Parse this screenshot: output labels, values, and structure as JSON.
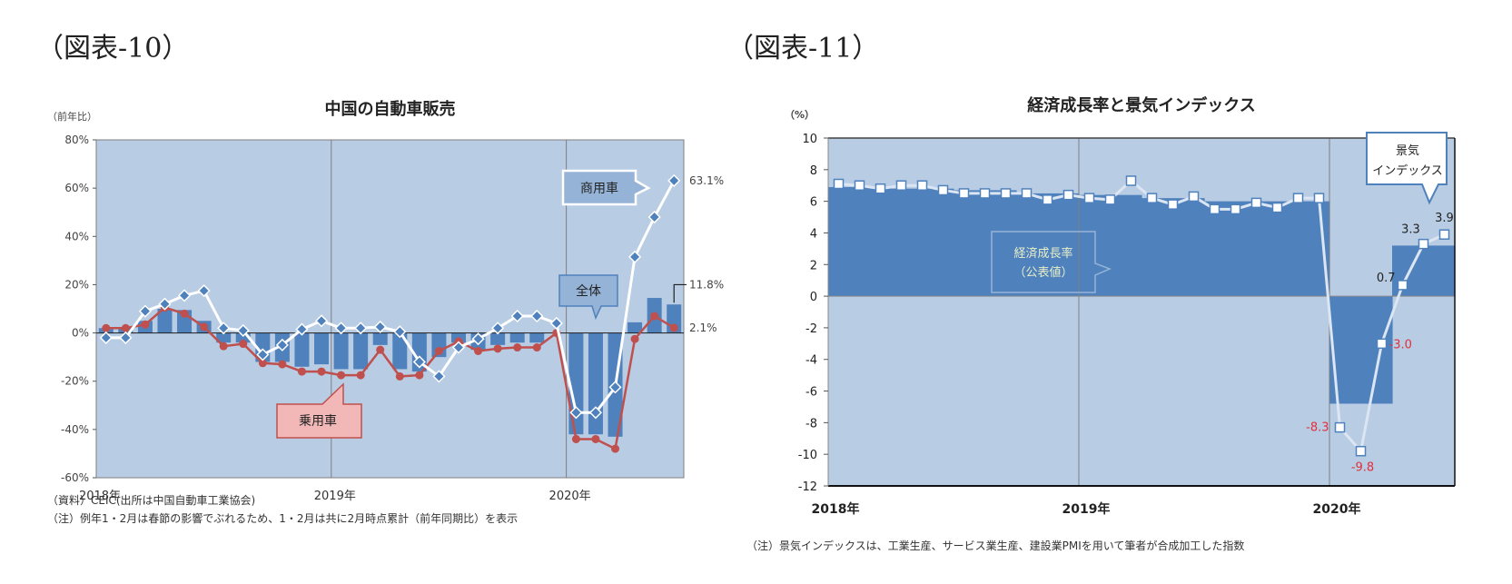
{
  "left": {
    "fig_label": "（図表-10）",
    "title": "中国の自動車販売",
    "unit": "（前年比）",
    "notes": [
      "（資料）CEIC(出所は中国自動車工業協会)",
      "（注）例年1・2月は春節の影響でぶれるため、1・2月は共に2月時点累計（前年同期比）を表示"
    ],
    "callouts": {
      "commercial": "商用車",
      "total": "全体",
      "passenger": "乗用車"
    },
    "end_labels": {
      "commercial": "63.1%",
      "total": "11.8%",
      "passenger": "2.1%"
    }
  },
  "right": {
    "fig_label": "（図表-11）",
    "title": "経済成長率と景気インデックス",
    "unit": "（%）",
    "notes": [
      "（注）景気インデックスは、工業生産、サービス業生産、建設業PMIを用いて筆者が合成加工した指数"
    ],
    "callouts": {
      "gdp_line1": "経済成長率",
      "gdp_line2": "（公表値）",
      "index_line1": "景気",
      "index_line2": "インデックス"
    }
  },
  "colors": {
    "plot_bg": "#b8cce4",
    "bar": "#4f81bd",
    "passenger_line": "#c0504d",
    "commercial_line": "#ffffff",
    "marker_blue": "#4f81bd",
    "neg_label": "#e0303a",
    "callout_red_fill": "#f2b8b8",
    "callout_blue_fill": "#95b3d7"
  },
  "chart_data": [
    {
      "type": "bar+line",
      "title": "中国の自動車販売",
      "ylabel": "（前年比）",
      "ylim": [
        -60,
        80
      ],
      "yticks": [
        "80%",
        "60%",
        "40%",
        "20%",
        "0%",
        "-20%",
        "-40%",
        "-60%"
      ],
      "xticks": [
        "2018年",
        "2019年",
        "2020年"
      ],
      "x": [
        "2018-01",
        "2018-02",
        "2018-03",
        "2018-04",
        "2018-05",
        "2018-06",
        "2018-07",
        "2018-08",
        "2018-09",
        "2018-10",
        "2018-11",
        "2018-12",
        "2019-01",
        "2019-02",
        "2019-03",
        "2019-04",
        "2019-05",
        "2019-06",
        "2019-07",
        "2019-08",
        "2019-09",
        "2019-10",
        "2019-11",
        "2019-12",
        "2020-01",
        "2020-02",
        "2020-03",
        "2020-04",
        "2020-05",
        "2020-06"
      ],
      "series": [
        {
          "name": "全体",
          "type": "bar",
          "values": [
            2,
            2,
            5,
            10,
            9.5,
            5,
            -4,
            -4,
            -12,
            -12,
            -14,
            -13,
            -15,
            -15,
            -5,
            -15,
            -16,
            -10,
            -4,
            -7,
            -5,
            -4,
            -4,
            0,
            -42,
            -42,
            -43,
            4.4,
            14.5,
            11.8
          ]
        },
        {
          "name": "乗用車",
          "type": "line",
          "values": [
            2,
            2,
            3.5,
            10.5,
            8,
            2.5,
            -5.5,
            -4.5,
            -12.5,
            -13,
            -16,
            -16,
            -17.5,
            -17.5,
            -7,
            -18,
            -17.5,
            -7.5,
            -3.5,
            -7.5,
            -6.5,
            -6,
            -6,
            0,
            -44,
            -44,
            -48,
            -2.5,
            7,
            2.1
          ]
        },
        {
          "name": "商用車",
          "type": "line",
          "values": [
            -2,
            -2,
            9,
            12,
            15.5,
            17.5,
            2,
            1,
            -9,
            -5,
            1.5,
            5,
            2,
            2,
            2.5,
            0.5,
            -12,
            -18,
            -6,
            -2.5,
            2,
            7,
            7,
            4,
            -33,
            -33,
            -22.5,
            31.5,
            48,
            63.1
          ]
        }
      ],
      "annotations": [
        "63.1%",
        "11.8%",
        "2.1%"
      ],
      "grid": "vertical year lines"
    },
    {
      "type": "area+line",
      "title": "経済成長率と景気インデックス",
      "ylabel": "（%）",
      "ylim": [
        -12,
        10
      ],
      "yticks": [
        "10",
        "8",
        "6",
        "4",
        "2",
        "0",
        "-2",
        "-4",
        "-6",
        "-8",
        "-10",
        "-12"
      ],
      "xticks": [
        "2018年",
        "2019年",
        "2020年"
      ],
      "x": [
        "2018-01",
        "2018-02",
        "2018-03",
        "2018-04",
        "2018-05",
        "2018-06",
        "2018-07",
        "2018-08",
        "2018-09",
        "2018-10",
        "2018-11",
        "2018-12",
        "2019-01",
        "2019-02",
        "2019-03",
        "2019-04",
        "2019-05",
        "2019-06",
        "2019-07",
        "2019-08",
        "2019-09",
        "2019-10",
        "2019-11",
        "2019-12",
        "2020-01",
        "2020-02",
        "2020-03",
        "2020-04",
        "2020-05",
        "2020-06"
      ],
      "series": [
        {
          "name": "経済成長率（公表値）",
          "type": "step-area",
          "values": [
            6.9,
            6.9,
            6.9,
            6.8,
            6.8,
            6.8,
            6.7,
            6.7,
            6.7,
            6.5,
            6.5,
            6.5,
            6.4,
            6.4,
            6.4,
            6.2,
            6.2,
            6.2,
            6.0,
            6.0,
            6.0,
            6.0,
            6.0,
            6.0,
            -6.8,
            -6.8,
            -6.8,
            3.2,
            3.2,
            3.2
          ]
        },
        {
          "name": "景気インデックス",
          "type": "line",
          "values": [
            7.1,
            7.0,
            6.8,
            7.0,
            7.0,
            6.7,
            6.5,
            6.5,
            6.5,
            6.5,
            6.1,
            6.4,
            6.2,
            6.1,
            7.3,
            6.2,
            5.8,
            6.3,
            5.5,
            5.5,
            5.9,
            5.6,
            6.2,
            6.2,
            -8.3,
            -9.8,
            -3.0,
            0.7,
            3.3,
            3.9
          ]
        }
      ],
      "annotations": [
        "-8.3",
        "-9.8",
        "-3.0",
        "0.7",
        "3.3",
        "3.9"
      ],
      "grid": "vertical year lines"
    }
  ]
}
